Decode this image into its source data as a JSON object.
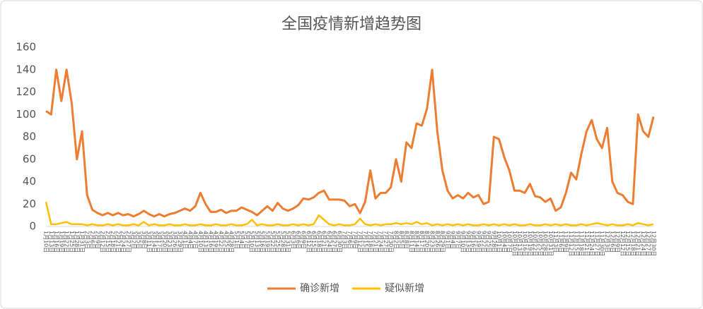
{
  "chart_data": {
    "type": "line",
    "title": "全国疫情新增趋势图",
    "categories": [
      "1月10日",
      "1月13日",
      "1月16日",
      "1月19日",
      "1月22日",
      "1月25日",
      "1月28日",
      "1月31日",
      "2月3日",
      "2月6日",
      "2月9日",
      "2月12日",
      "2月15日",
      "2月18日",
      "2月21日",
      "2月24日",
      "2月27日",
      "3月2日",
      "3月5日",
      "3月8日",
      "3月11日",
      "3月14日",
      "3月17日",
      "3月20日",
      "3月23日",
      "3月26日",
      "3月29日",
      "4月1日",
      "4月4日",
      "4月7日",
      "4月10日",
      "4月13日",
      "4月16日",
      "4月19日",
      "4月22日",
      "4月25日",
      "4月28日",
      "5月1日",
      "5月4日",
      "5月7日",
      "5月10日",
      "5月13日",
      "5月16日",
      "5月19日",
      "5月22日",
      "5月25日",
      "5月28日",
      "5月31日",
      "6月3日",
      "6月6日",
      "6月9日",
      "6月12日",
      "6月15日",
      "6月18日",
      "6月21日",
      "6月24日",
      "6月27日",
      "6月30日",
      "7月3日",
      "7月6日",
      "7月9日",
      "7月12日",
      "7月15日",
      "7月18日",
      "7月21日",
      "7月24日",
      "7月27日",
      "7月30日",
      "8月2日",
      "8月5日",
      "8月8日",
      "8月11日",
      "8月14日",
      "8月17日",
      "8月20日",
      "8月23日",
      "8月26日",
      "8月29日",
      "9月1日",
      "9月4日",
      "9月7日",
      "9月10日",
      "9月13日",
      "9月16日",
      "9月19日",
      "9月22日",
      "9月25日",
      "9月28日",
      "10月1日",
      "10月4日",
      "10月7日",
      "10月10日",
      "10月13日",
      "10月16日",
      "10月19日",
      "10月22日",
      "10月25日",
      "10月28日",
      "10月31日",
      "11月3日",
      "11月6日",
      "11月9日",
      "11月12日",
      "11月15日",
      "11月18日",
      "11月21日",
      "11月24日",
      "11月27日",
      "11月30日",
      "12月3日",
      "12月6日",
      "12月9日",
      "12月12日",
      "12月15日",
      "12月18日",
      "12月21日",
      "12月24日",
      "12月27日",
      "12月30日"
    ],
    "series": [
      {
        "name": "确诊新增",
        "color": "#ed7d31",
        "values": [
          103,
          100,
          140,
          112,
          140,
          110,
          60,
          85,
          28,
          15,
          12,
          10,
          12,
          10,
          12,
          10,
          11,
          9,
          11,
          14,
          11,
          9,
          11,
          9,
          11,
          12,
          14,
          16,
          14,
          18,
          30,
          20,
          13,
          13,
          15,
          12,
          14,
          14,
          17,
          15,
          13,
          10,
          14,
          18,
          14,
          21,
          16,
          14,
          16,
          19,
          25,
          24,
          26,
          30,
          32,
          24,
          24,
          24,
          23,
          18,
          20,
          12,
          22,
          50,
          25,
          30,
          30,
          35,
          60,
          40,
          75,
          70,
          92,
          90,
          105,
          140,
          85,
          50,
          32,
          25,
          28,
          25,
          30,
          26,
          28,
          20,
          22,
          80,
          78,
          62,
          50,
          32,
          32,
          30,
          38,
          27,
          26,
          22,
          25,
          14,
          17,
          30,
          48,
          42,
          65,
          85,
          95,
          78,
          70,
          88,
          40,
          30,
          28,
          22,
          20,
          100,
          85,
          80,
          98
        ]
      },
      {
        "name": "疑似新增",
        "color": "#ffc000",
        "values": [
          22,
          2,
          2,
          3,
          4,
          2,
          2,
          2,
          1,
          2,
          1,
          1,
          2,
          1,
          2,
          1,
          1,
          2,
          1,
          4,
          1,
          2,
          1,
          1,
          2,
          1,
          1,
          2,
          1,
          1,
          2,
          1,
          1,
          2,
          1,
          1,
          2,
          1,
          1,
          2,
          6,
          1,
          2,
          1,
          1,
          2,
          1,
          1,
          2,
          1,
          2,
          1,
          2,
          10,
          6,
          2,
          1,
          2,
          1,
          1,
          2,
          7,
          2,
          1,
          2,
          1,
          2,
          2,
          3,
          2,
          3,
          2,
          4,
          2,
          3,
          1,
          2,
          1,
          2,
          1,
          2,
          1,
          2,
          1,
          1,
          2,
          1,
          2,
          1,
          2,
          1,
          2,
          1,
          1,
          2,
          1,
          1,
          2,
          1,
          2,
          1,
          2,
          1,
          1,
          2,
          1,
          2,
          3,
          2,
          1,
          2,
          1,
          1,
          2,
          1,
          3,
          2,
          1,
          2
        ]
      }
    ],
    "ylim": [
      0,
      160
    ],
    "yticks": [
      0,
      20,
      40,
      60,
      80,
      100,
      120,
      140,
      160
    ],
    "grid": false,
    "legend": "bottom"
  }
}
